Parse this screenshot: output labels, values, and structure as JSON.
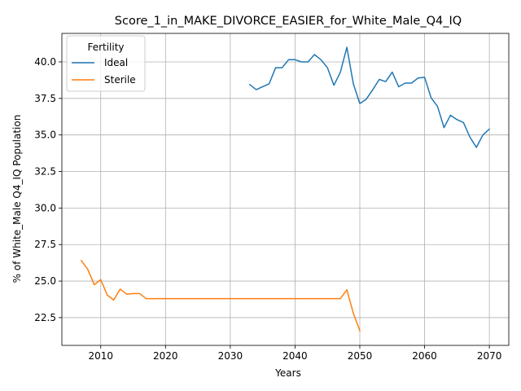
{
  "chart_data": {
    "type": "line",
    "title": "Score_1_in_MAKE_DIVORCE_EASIER_for_White_Male_Q4_IQ",
    "xlabel": "Years",
    "ylabel": "% of White_Male Q4_IQ Population",
    "xlim": [
      2004,
      2073
    ],
    "ylim": [
      20.6,
      41.95
    ],
    "xticks": [
      2010,
      2020,
      2030,
      2040,
      2050,
      2060,
      2070
    ],
    "yticks": [
      22.5,
      25.0,
      27.5,
      30.0,
      32.5,
      35.0,
      37.5,
      40.0
    ],
    "grid": true,
    "legend": {
      "title": "Fertility",
      "position": "upper-left"
    },
    "series": [
      {
        "name": "Ideal",
        "color": "#1f77b4",
        "points": [
          [
            2033,
            38.45
          ],
          [
            2034,
            38.1
          ],
          [
            2035,
            38.3
          ],
          [
            2036,
            38.5
          ],
          [
            2037,
            39.6
          ],
          [
            2038,
            39.6
          ],
          [
            2039,
            40.15
          ],
          [
            2040,
            40.15
          ],
          [
            2041,
            40.0
          ],
          [
            2042,
            40.0
          ],
          [
            2043,
            40.5
          ],
          [
            2044,
            40.15
          ],
          [
            2045,
            39.6
          ],
          [
            2046,
            38.4
          ],
          [
            2047,
            39.3
          ],
          [
            2048,
            41.0
          ],
          [
            2049,
            38.5
          ],
          [
            2050,
            37.15
          ],
          [
            2051,
            37.45
          ],
          [
            2052,
            38.1
          ],
          [
            2053,
            38.8
          ],
          [
            2054,
            38.65
          ],
          [
            2055,
            39.3
          ],
          [
            2056,
            38.3
          ],
          [
            2057,
            38.55
          ],
          [
            2058,
            38.55
          ],
          [
            2059,
            38.9
          ],
          [
            2060,
            38.95
          ],
          [
            2061,
            37.55
          ],
          [
            2062,
            36.95
          ],
          [
            2063,
            35.5
          ],
          [
            2064,
            36.35
          ],
          [
            2065,
            36.05
          ],
          [
            2066,
            35.85
          ],
          [
            2067,
            34.85
          ],
          [
            2068,
            34.15
          ],
          [
            2069,
            35.0
          ],
          [
            2070,
            35.4
          ]
        ]
      },
      {
        "name": "Sterile",
        "color": "#ff7f0e",
        "points": [
          [
            2007,
            26.4
          ],
          [
            2008,
            25.8
          ],
          [
            2009,
            24.75
          ],
          [
            2010,
            25.1
          ],
          [
            2011,
            24.05
          ],
          [
            2012,
            23.7
          ],
          [
            2013,
            24.45
          ],
          [
            2014,
            24.1
          ],
          [
            2015,
            24.15
          ],
          [
            2016,
            24.15
          ],
          [
            2017,
            23.8
          ],
          [
            2018,
            23.8
          ],
          [
            2019,
            23.8
          ],
          [
            2020,
            23.8
          ],
          [
            2021,
            23.8
          ],
          [
            2022,
            23.8
          ],
          [
            2023,
            23.8
          ],
          [
            2024,
            23.8
          ],
          [
            2025,
            23.8
          ],
          [
            2026,
            23.8
          ],
          [
            2027,
            23.8
          ],
          [
            2028,
            23.8
          ],
          [
            2029,
            23.8
          ],
          [
            2030,
            23.8
          ],
          [
            2031,
            23.8
          ],
          [
            2032,
            23.8
          ],
          [
            2033,
            23.8
          ],
          [
            2034,
            23.8
          ],
          [
            2035,
            23.8
          ],
          [
            2036,
            23.8
          ],
          [
            2037,
            23.8
          ],
          [
            2038,
            23.8
          ],
          [
            2039,
            23.8
          ],
          [
            2040,
            23.8
          ],
          [
            2041,
            23.8
          ],
          [
            2042,
            23.8
          ],
          [
            2043,
            23.8
          ],
          [
            2044,
            23.8
          ],
          [
            2045,
            23.8
          ],
          [
            2046,
            23.8
          ],
          [
            2047,
            23.8
          ],
          [
            2048,
            24.4
          ],
          [
            2049,
            22.8
          ],
          [
            2050,
            21.6
          ]
        ]
      }
    ]
  }
}
